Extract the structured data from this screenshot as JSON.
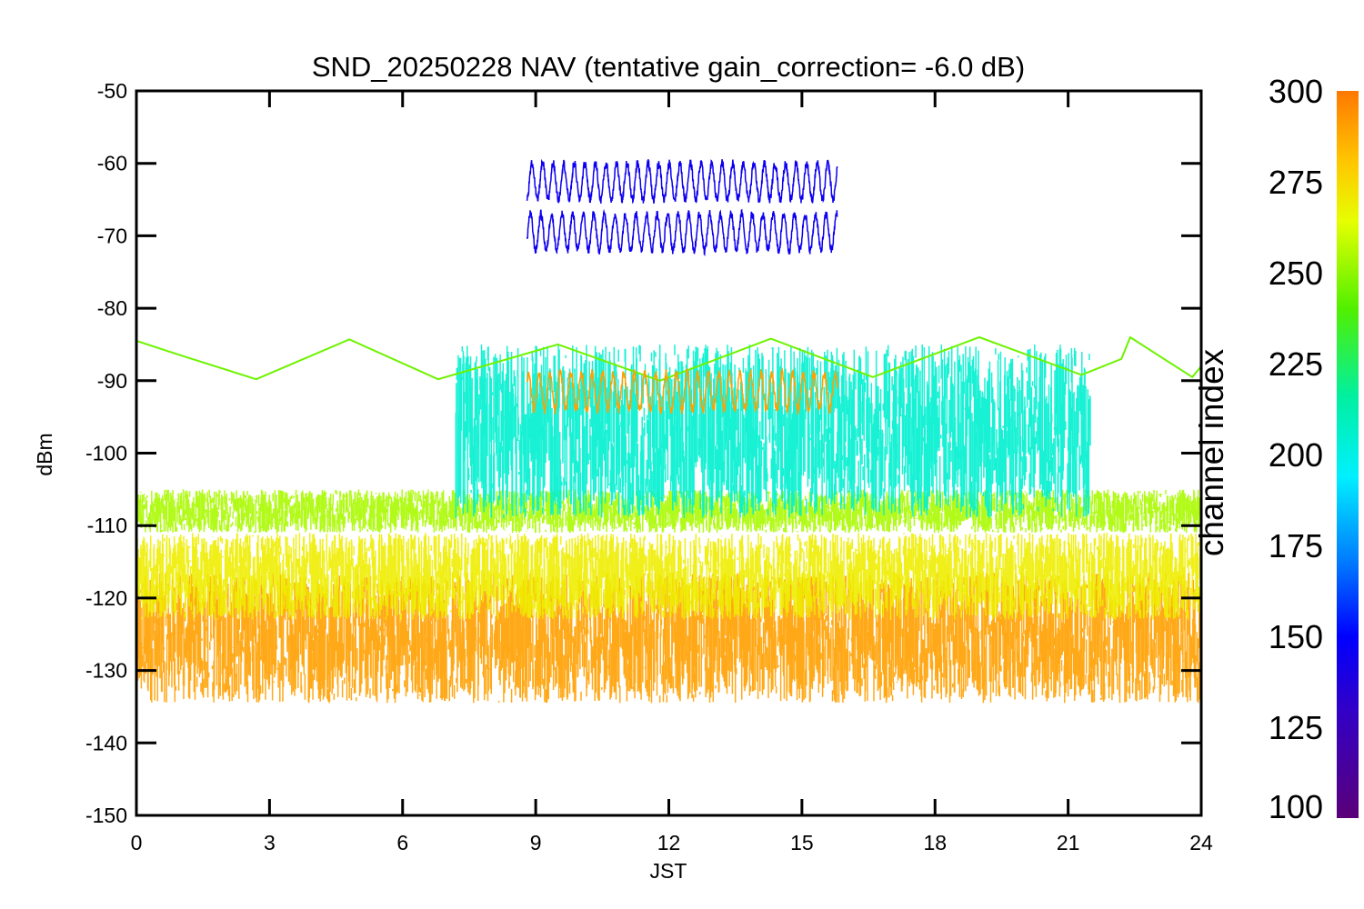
{
  "chart_data": {
    "type": "line",
    "title": "SND_20250228 NAV (tentative gain_correction= -6.0 dB)",
    "xlabel": "JST",
    "ylabel": "dBm",
    "xlim": [
      0,
      24
    ],
    "ylim": [
      -150,
      -50
    ],
    "xticks": [
      0,
      3,
      6,
      9,
      12,
      15,
      18,
      21,
      24
    ],
    "yticks": [
      -50,
      -60,
      -70,
      -80,
      -90,
      -100,
      -110,
      -120,
      -130,
      -140,
      -150
    ],
    "colorbar": {
      "label": "channel index",
      "range": [
        100,
        300
      ],
      "ticks": [
        300,
        275,
        250,
        225,
        200,
        175,
        150,
        125,
        100
      ]
    },
    "series": [
      {
        "name": "noise floor band",
        "channel": 290,
        "center_dBm": -125.5,
        "spread_dBm": 9,
        "x_range": [
          0,
          24
        ]
      },
      {
        "name": "upper noise band",
        "channel": 270,
        "center_dBm": -117,
        "spread_dBm": 6,
        "x_range": [
          0,
          24
        ]
      },
      {
        "name": "green band",
        "channel": 255,
        "center_dBm": -108,
        "spread_dBm": 3,
        "x_range": [
          0,
          24
        ]
      },
      {
        "name": "daytime cyan bursts",
        "channel": 205,
        "center_dBm": -97,
        "spread_dBm": 12,
        "x_range": [
          7.2,
          21.5
        ]
      },
      {
        "name": "sinusoid",
        "channel": 245,
        "points": [
          [
            0,
            -84.5
          ],
          [
            1,
            -86.5
          ],
          [
            2.7,
            -89.8
          ],
          [
            4.8,
            -84.3
          ],
          [
            6.8,
            -89.8
          ],
          [
            9.5,
            -85
          ],
          [
            11.8,
            -90
          ],
          [
            14.3,
            -84.2
          ],
          [
            16.6,
            -89.5
          ],
          [
            19,
            -84
          ],
          [
            21.3,
            -89.2
          ],
          [
            22.2,
            -87
          ],
          [
            22.4,
            -84
          ],
          [
            23.8,
            -89.5
          ],
          [
            24,
            -88
          ]
        ]
      },
      {
        "name": "blue signal upper",
        "channel": 145,
        "center_dBm": -62.5,
        "amplitude_dBm": 2.5,
        "x_range": [
          8.8,
          15.8
        ]
      },
      {
        "name": "blue signal lower",
        "channel": 145,
        "center_dBm": -69.5,
        "amplitude_dBm": 2.5,
        "x_range": [
          8.8,
          15.8
        ]
      },
      {
        "name": "orange signal",
        "channel": 290,
        "center_dBm": -91.5,
        "amplitude_dBm": 2.5,
        "x_range": [
          8.8,
          15.8
        ]
      }
    ]
  }
}
